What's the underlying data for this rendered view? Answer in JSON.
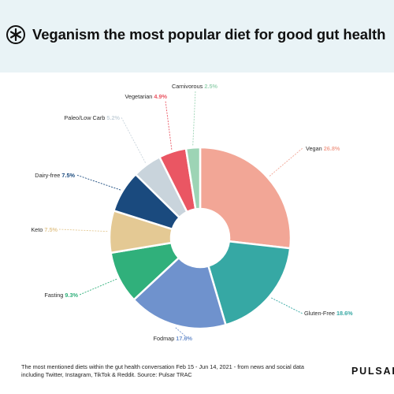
{
  "header": {
    "title": "Veganism the most popular diet for good gut health",
    "logo_icon": "pulsar-asterisk-icon"
  },
  "chart_data": {
    "type": "pie",
    "style": "donut",
    "title": "Veganism the most popular diet for good gut health",
    "slices": [
      {
        "name": "Vegan",
        "value": 26.8,
        "display": "26.8%",
        "color": "#f2a696"
      },
      {
        "name": "Gluten-Free",
        "value": 18.6,
        "display": "18.6%",
        "color": "#36a8a4"
      },
      {
        "name": "Fodmap",
        "value": 17.6,
        "display": "17.6%",
        "color": "#6f92cd"
      },
      {
        "name": "Fasting",
        "value": 9.3,
        "display": "9.3%",
        "color": "#30b07b"
      },
      {
        "name": "Keto",
        "value": 7.5,
        "display": "7.5%",
        "color": "#e4c994"
      },
      {
        "name": "Dairy-free",
        "value": 7.5,
        "display": "7.5%",
        "color": "#1a4a7e"
      },
      {
        "name": "Paleo/Low Carb",
        "value": 5.2,
        "display": "5.2%",
        "color": "#c9d4dc"
      },
      {
        "name": "Vegetarian",
        "value": 4.9,
        "display": "4.9%",
        "color": "#ea5663"
      },
      {
        "name": "Carnivorous",
        "value": 2.5,
        "display": "2.5%",
        "color": "#9dd4b5"
      }
    ]
  },
  "footer": {
    "note_line1": "The most mentioned diets within the gut health conversation Feb 15 - Jun 14, 2021 - from news and social data",
    "note_line2": "including Twitter, Instagram, TikTok & Reddit. Source: Pulsar TRAC",
    "brand": "PULSAR"
  }
}
